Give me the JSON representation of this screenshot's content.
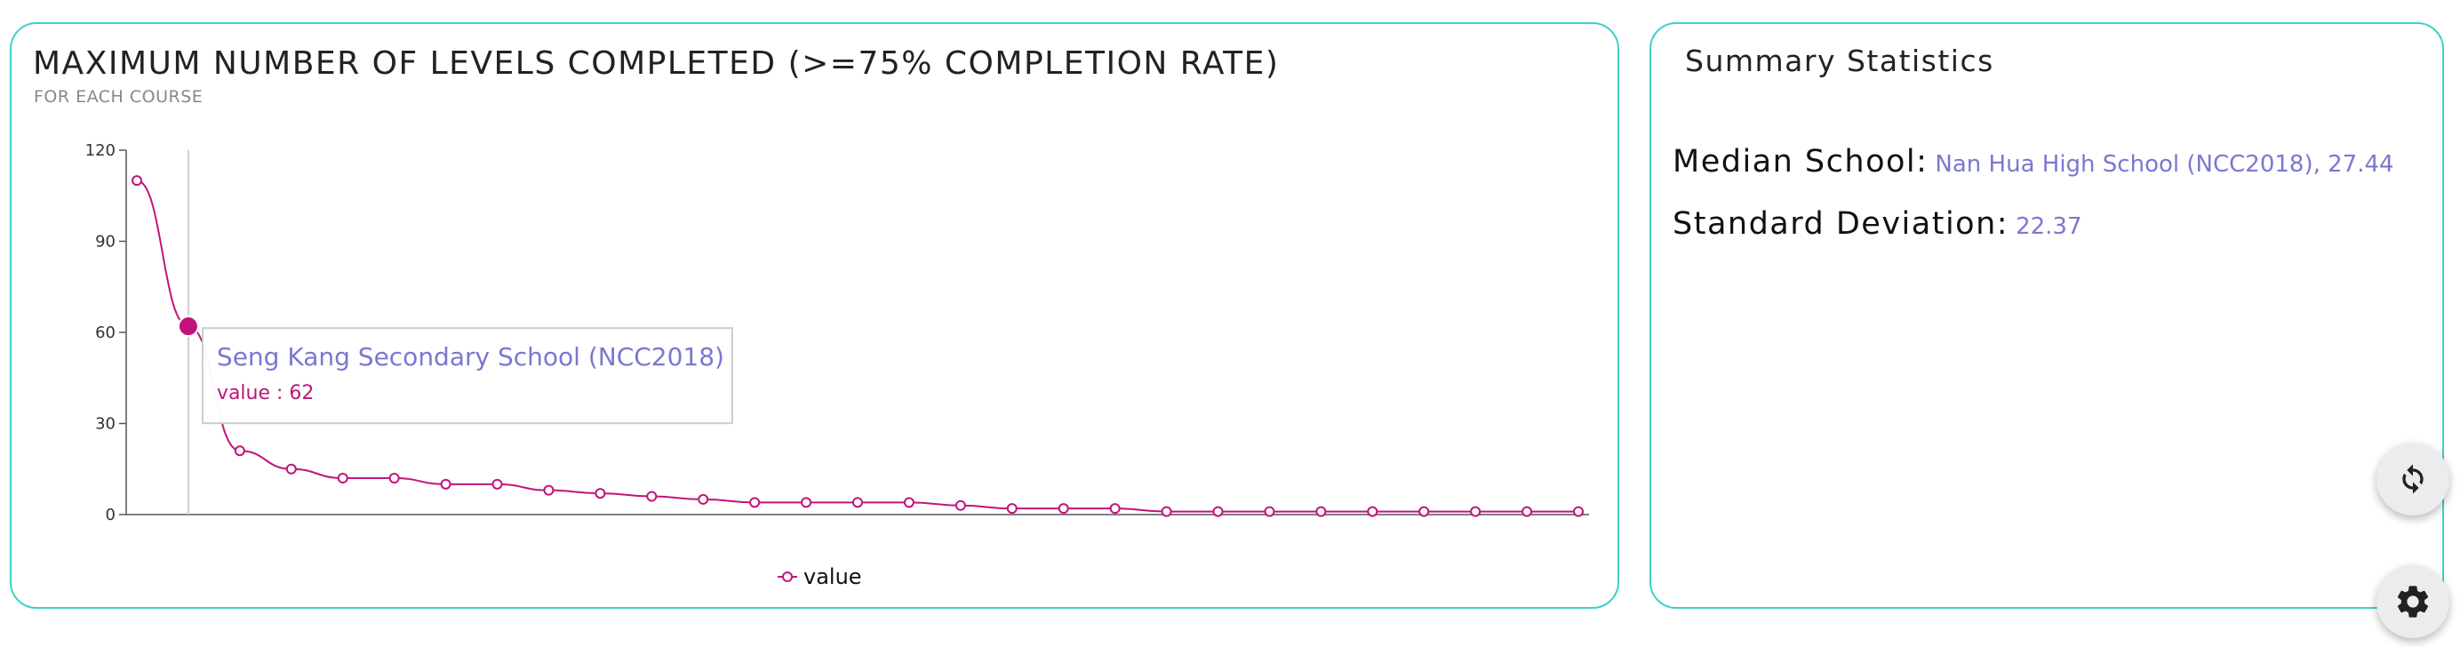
{
  "chart_panel": {
    "title": "MAXIMUM NUMBER OF LEVELS COMPLETED (>=75% COMPLETION RATE)",
    "subtitle": "FOR EACH COURSE"
  },
  "summary": {
    "title": "Summary Statistics",
    "median_label": "Median School:",
    "median_value": "Nan Hua High School (NCC2018), 27.44",
    "stddev_label": "Standard Deviation:",
    "stddev_value": "22.37"
  },
  "controls": {
    "refresh_icon": "refresh-icon",
    "settings_icon": "gear-icon"
  },
  "colors": {
    "card_border": "#3fd0c9",
    "line": "#c0147c",
    "accent_text": "#7a78d0"
  },
  "chart_data": {
    "type": "line",
    "title": "MAXIMUM NUMBER OF LEVELS COMPLETED (>=75% COMPLETION RATE)",
    "subtitle": "FOR EACH COURSE",
    "xlabel": "",
    "ylabel": "",
    "ylim": [
      0,
      120
    ],
    "yticks": [
      0,
      30,
      60,
      90,
      120
    ],
    "grid": false,
    "legend_position": "bottom-center",
    "series": [
      {
        "name": "value",
        "values": [
          110,
          62,
          21,
          15,
          12,
          12,
          10,
          10,
          8,
          7,
          6,
          5,
          4,
          4,
          4,
          4,
          3,
          2,
          2,
          2,
          1,
          1,
          1,
          1,
          1,
          1,
          1,
          1,
          1
        ]
      }
    ],
    "tooltip": {
      "title": "Seng Kang Secondary School (NCC2018)",
      "label": "value : 62",
      "point_index": 1
    }
  }
}
